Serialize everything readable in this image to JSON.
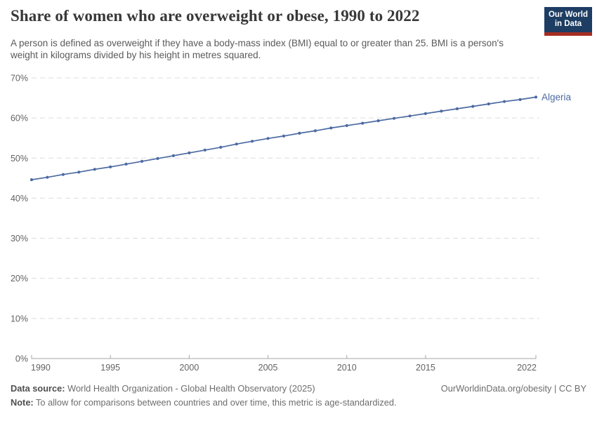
{
  "header": {
    "title": "Share of women who are overweight or obese, 1990 to 2022",
    "subtitle": "A person is defined as overweight if they have a body-mass index (BMI) equal to or greater than 25. BMI is a person's weight in kilograms divided by his height in metres squared.",
    "logo": {
      "line1": "Our World",
      "line2": "in Data"
    }
  },
  "chart_data": {
    "type": "line",
    "title": "Share of women who are overweight or obese, 1990 to 2022",
    "xlabel": "",
    "ylabel": "",
    "xlim": [
      1990,
      2022
    ],
    "ylim": [
      0,
      70
    ],
    "yticks": [
      0,
      10,
      20,
      30,
      40,
      50,
      60,
      70
    ],
    "ytick_suffix": "%",
    "xticks": [
      1990,
      1995,
      2000,
      2005,
      2010,
      2015,
      2022
    ],
    "grid": "horizontal-dashed",
    "legend_position": "end-of-line",
    "x": [
      1990,
      1991,
      1992,
      1993,
      1994,
      1995,
      1996,
      1997,
      1998,
      1999,
      2000,
      2001,
      2002,
      2003,
      2004,
      2005,
      2006,
      2007,
      2008,
      2009,
      2010,
      2011,
      2012,
      2013,
      2014,
      2015,
      2016,
      2017,
      2018,
      2019,
      2020,
      2021,
      2022
    ],
    "series": [
      {
        "name": "Algeria",
        "color": "#4c6aa2",
        "values": [
          44.6,
          45.2,
          45.9,
          46.5,
          47.2,
          47.8,
          48.5,
          49.2,
          49.9,
          50.6,
          51.3,
          52.0,
          52.7,
          53.5,
          54.2,
          54.9,
          55.5,
          56.2,
          56.8,
          57.5,
          58.1,
          58.7,
          59.3,
          59.9,
          60.5,
          61.1,
          61.7,
          62.3,
          62.9,
          63.5,
          64.1,
          64.6,
          65.2
        ]
      }
    ]
  },
  "footer": {
    "datasource_label": "Data source:",
    "datasource_text": "World Health Organization - Global Health Observatory (2025)",
    "rights": "OurWorldinData.org/obesity | CC BY",
    "note_label": "Note:",
    "note_text": "To allow for comparisons between countries and over time, this metric is age-standardized."
  },
  "colors": {
    "line": "#4c6aa2",
    "grid": "#dcdcdc",
    "axis": "#a5a5a5",
    "tick_label": "#636363",
    "logo_bg": "#1d3d63",
    "logo_stripe": "#a52e22"
  }
}
